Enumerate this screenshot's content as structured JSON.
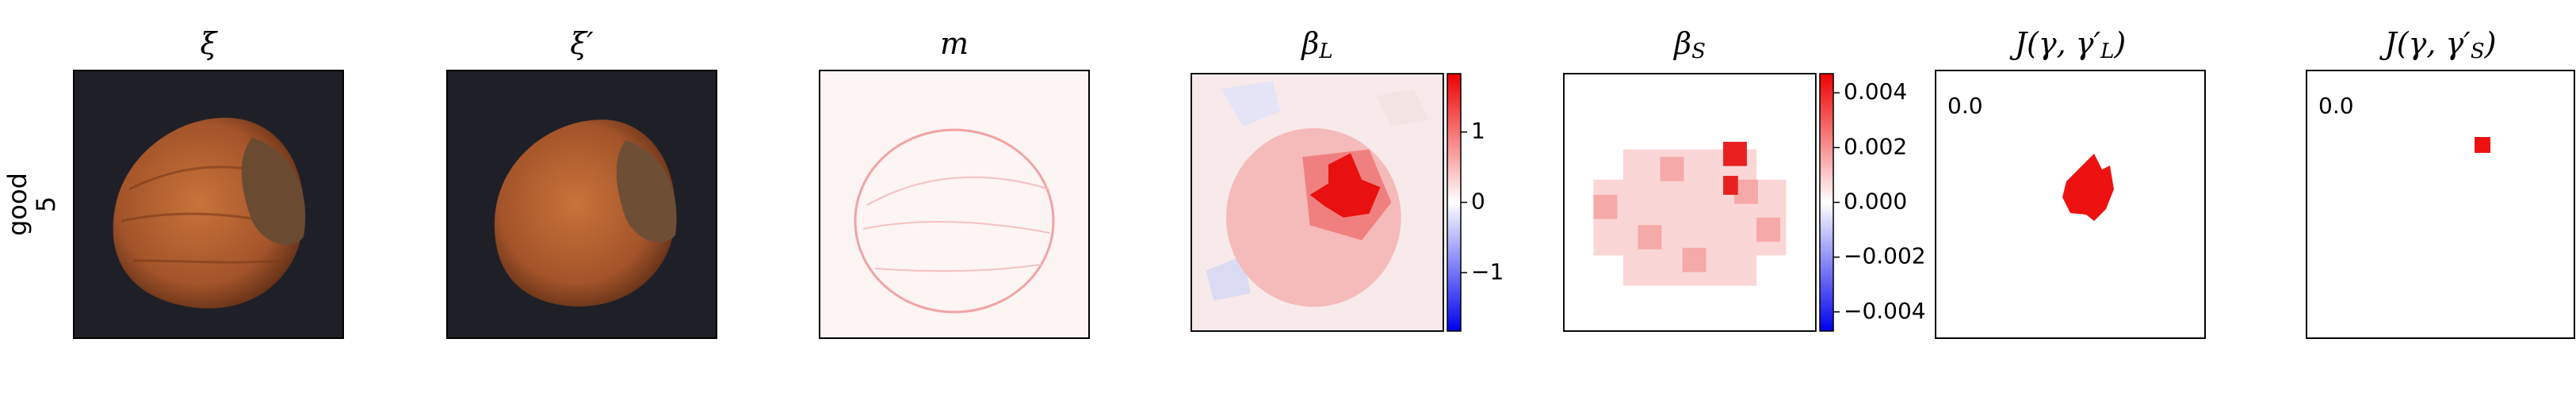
{
  "row_label": [
    "good",
    "5"
  ],
  "panels": [
    {
      "title": [
        {
          "text": "ξ"
        }
      ]
    },
    {
      "title": [
        {
          "text": "ξ′"
        }
      ]
    },
    {
      "title": [
        {
          "text": "m"
        }
      ]
    },
    {
      "title": [
        {
          "text": "β"
        },
        {
          "text": "L",
          "sub": true
        }
      ],
      "colorbar": {
        "lim": [
          -1.83,
          1.83
        ],
        "ticks": [
          {
            "value": -1,
            "label": "−1"
          },
          0,
          1
        ]
      }
    },
    {
      "title": [
        {
          "text": "β"
        },
        {
          "text": "S",
          "sub": true
        }
      ],
      "colorbar": {
        "lim": [
          -0.0047,
          0.0047
        ],
        "ticks": [
          {
            "value": -0.004,
            "label": "−0.004"
          },
          {
            "value": -0.002,
            "label": "−0.002"
          },
          {
            "value": 0,
            "label": "0.000"
          },
          0.002,
          0.004
        ]
      }
    },
    {
      "title": [
        {
          "text": "J(γ, γ′"
        },
        {
          "text": "L",
          "sub": true
        },
        {
          "text": ")"
        }
      ],
      "annotation": "0.0"
    },
    {
      "title": [
        {
          "text": "J(γ, γ′"
        },
        {
          "text": "S",
          "sub": true
        },
        {
          "text": ")"
        }
      ],
      "annotation": "0.0"
    }
  ]
}
